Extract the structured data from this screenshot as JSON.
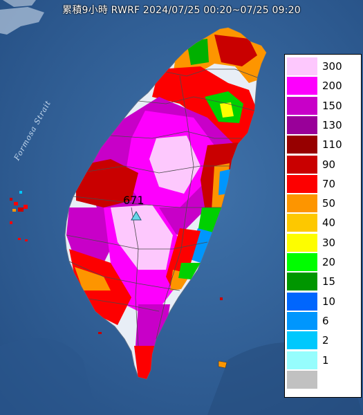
{
  "title": "累積9小時 RWRF 2024/07/25 00:20~07/25 09:20",
  "map": {
    "strait_label": "Formosa Strait",
    "max_value_label": "671",
    "max_marker_icon": "triangle-marker-icon",
    "sea_color": "#2d5a92",
    "land_color": "#e8eef6"
  },
  "legend": {
    "levels": [
      {
        "label": "300",
        "color": "#fdc8fd"
      },
      {
        "label": "200",
        "color": "#fd00fd"
      },
      {
        "label": "150",
        "color": "#c800c8"
      },
      {
        "label": "130",
        "color": "#990099"
      },
      {
        "label": "110",
        "color": "#970000"
      },
      {
        "label": "90",
        "color": "#c90000"
      },
      {
        "label": "70",
        "color": "#fd0000"
      },
      {
        "label": "50",
        "color": "#fd9500"
      },
      {
        "label": "40",
        "color": "#fdc800"
      },
      {
        "label": "30",
        "color": "#fdfd00"
      },
      {
        "label": "20",
        "color": "#00fd00"
      },
      {
        "label": "15",
        "color": "#009600"
      },
      {
        "label": "10",
        "color": "#0066fd"
      },
      {
        "label": "6",
        "color": "#0096fd"
      },
      {
        "label": "2",
        "color": "#00c8fd"
      },
      {
        "label": "1",
        "color": "#96fdfd"
      },
      {
        "label": "",
        "color": "#c1c1c1"
      }
    ]
  }
}
